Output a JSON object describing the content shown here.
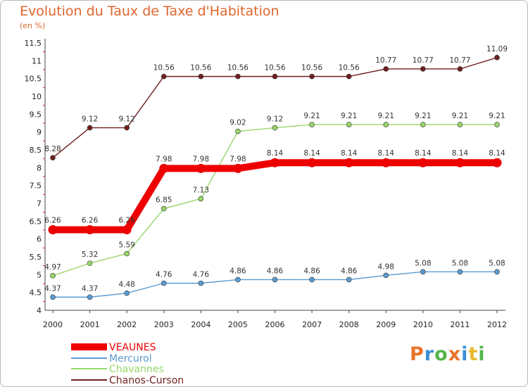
{
  "header": {
    "title": "Evolution du Taux de Taxe d'Habitation",
    "unit": "(en %)"
  },
  "logo": {
    "text": "Proxiti",
    "colors": [
      "#e8742a",
      "#3a8fd6",
      "#55b548",
      "#e8742a",
      "#3a8fd6",
      "#e8b92a",
      "#55b548"
    ]
  },
  "chart_data": {
    "type": "line",
    "title": "Evolution du Taux de Taxe d'Habitation",
    "ylabel": "(en %)",
    "xlabel": "",
    "x": [
      "2000",
      "2001",
      "2002",
      "2003",
      "2004",
      "2005",
      "2006",
      "2007",
      "2008",
      "2009",
      "2010",
      "2011",
      "2012"
    ],
    "ylim": [
      4,
      11.5
    ],
    "yticks": [
      "4",
      "4.5",
      "5",
      "5.5",
      "6",
      "6.5",
      "7",
      "7.5",
      "8",
      "8.5",
      "9",
      "9.5",
      "10",
      "10.5",
      "11",
      "11.5"
    ],
    "grid": false,
    "legend": "bottom-left",
    "series": [
      {
        "name": "VEAUNES",
        "color": "#ee0000",
        "values": [
          6.26,
          6.26,
          6.26,
          7.98,
          7.98,
          7.98,
          8.14,
          8.14,
          8.14,
          8.14,
          8.14,
          8.14,
          8.14
        ],
        "labels": [
          "6.26",
          "6.26",
          "6.26",
          "7.98",
          "7.98",
          "7.98",
          "8.14",
          "8.14",
          "8.14",
          "8.14",
          "8.14",
          "8.14",
          "8.14"
        ]
      },
      {
        "name": "Mercurol",
        "color": "#5b9bd0",
        "values": [
          4.37,
          4.37,
          4.48,
          4.76,
          4.76,
          4.86,
          4.86,
          4.86,
          4.86,
          4.98,
          5.08,
          5.08,
          5.08
        ],
        "labels": [
          "4.37",
          "4.37",
          "4.48",
          "4.76",
          "4.76",
          "4.86",
          "4.86",
          "4.86",
          "4.86",
          "4.98",
          "5.08",
          "5.08",
          "5.08"
        ]
      },
      {
        "name": "Chavannes",
        "color": "#98d66a",
        "values": [
          4.97,
          5.32,
          5.59,
          6.85,
          7.13,
          9.02,
          9.12,
          9.21,
          9.21,
          9.21,
          9.21,
          9.21,
          9.21
        ],
        "labels": [
          "4.97",
          "5.32",
          "5.59",
          "6.85",
          "7.13",
          "9.02",
          "9.12",
          "9.21",
          "9.21",
          "9.21",
          "9.21",
          "9.21",
          "9.21"
        ]
      },
      {
        "name": "Chanos-Curson",
        "color": "#6e1f1f",
        "values": [
          8.28,
          9.12,
          9.12,
          10.56,
          10.56,
          10.56,
          10.56,
          10.56,
          10.56,
          10.77,
          10.77,
          10.77,
          11.09
        ],
        "labels": [
          "8.28",
          "9.12",
          "9.12",
          "10.56",
          "10.56",
          "10.56",
          "10.56",
          "10.56",
          "10.56",
          "10.77",
          "10.77",
          "10.77",
          "11.09"
        ]
      }
    ]
  }
}
